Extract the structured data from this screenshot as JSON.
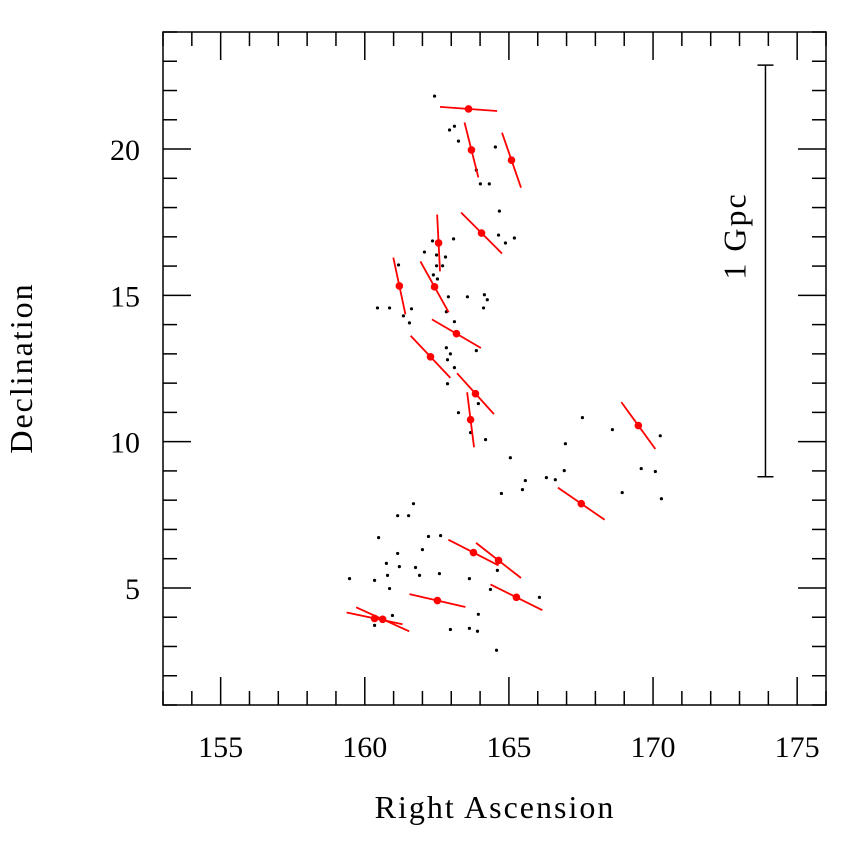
{
  "chart_data": {
    "type": "scatter",
    "title": "",
    "xlabel": "Right Ascension",
    "ylabel": "Declination",
    "xlim": [
      153,
      176
    ],
    "ylim": [
      1,
      24
    ],
    "x_ticks_major": [
      155,
      160,
      165,
      170,
      175
    ],
    "y_ticks_major": [
      5,
      10,
      15,
      20
    ],
    "x_ticks_minor_step": 1,
    "y_ticks_minor_step": 1,
    "x_tick_labels": [
      "155",
      "160",
      "165",
      "170",
      "175"
    ],
    "y_tick_labels": [
      "5",
      "10",
      "15",
      "20"
    ],
    "grid": false,
    "colors": {
      "points": "#000000",
      "highlighted": "#ff0000",
      "axes": "#000000"
    },
    "scale_bar": {
      "label": "1 Gpc",
      "ra": 173.9,
      "dec_range": [
        8.8,
        22.87
      ]
    },
    "series": [
      {
        "name": "galaxies",
        "marker": "dot",
        "points": [
          [
            162.42,
            21.81
          ],
          [
            162.94,
            20.65
          ],
          [
            163.11,
            20.78
          ],
          [
            163.25,
            20.27
          ],
          [
            164.53,
            20.07
          ],
          [
            163.87,
            19.28
          ],
          [
            164.01,
            18.81
          ],
          [
            164.32,
            18.81
          ],
          [
            164.67,
            17.88
          ],
          [
            164.64,
            17.06
          ],
          [
            165.19,
            16.96
          ],
          [
            164.88,
            16.79
          ],
          [
            163.08,
            16.93
          ],
          [
            162.35,
            16.86
          ],
          [
            162.07,
            16.48
          ],
          [
            162.49,
            16.38
          ],
          [
            162.8,
            16.31
          ],
          [
            161.17,
            16.04
          ],
          [
            162.49,
            16.01
          ],
          [
            162.7,
            16.01
          ],
          [
            162.38,
            15.7
          ],
          [
            162.52,
            15.56
          ],
          [
            162.9,
            14.95
          ],
          [
            163.56,
            14.95
          ],
          [
            164.15,
            15.02
          ],
          [
            164.25,
            14.85
          ],
          [
            164.12,
            14.57
          ],
          [
            160.44,
            14.57
          ],
          [
            160.86,
            14.57
          ],
          [
            161.62,
            14.54
          ],
          [
            161.34,
            14.3
          ],
          [
            161.55,
            14.06
          ],
          [
            162.83,
            14.44
          ],
          [
            163.11,
            14.1
          ],
          [
            163.87,
            13.11
          ],
          [
            162.83,
            13.21
          ],
          [
            162.97,
            13.0
          ],
          [
            162.87,
            12.8
          ],
          [
            163.11,
            12.53
          ],
          [
            162.87,
            11.98
          ],
          [
            163.94,
            11.3
          ],
          [
            163.25,
            10.99
          ],
          [
            163.67,
            10.31
          ],
          [
            164.19,
            10.07
          ],
          [
            165.05,
            9.45
          ],
          [
            167.55,
            10.82
          ],
          [
            168.59,
            10.41
          ],
          [
            170.25,
            10.2
          ],
          [
            166.96,
            9.93
          ],
          [
            166.92,
            9.01
          ],
          [
            166.3,
            8.77
          ],
          [
            166.61,
            8.7
          ],
          [
            165.57,
            8.67
          ],
          [
            165.47,
            8.36
          ],
          [
            164.74,
            8.23
          ],
          [
            169.59,
            9.08
          ],
          [
            170.08,
            8.98
          ],
          [
            168.93,
            8.26
          ],
          [
            170.29,
            8.05
          ],
          [
            161.69,
            7.88
          ],
          [
            161.14,
            7.47
          ],
          [
            161.52,
            7.47
          ],
          [
            160.48,
            6.72
          ],
          [
            162.21,
            6.76
          ],
          [
            162.63,
            6.79
          ],
          [
            162.0,
            6.31
          ],
          [
            161.14,
            6.18
          ],
          [
            160.75,
            5.84
          ],
          [
            161.2,
            5.73
          ],
          [
            161.76,
            5.7
          ],
          [
            160.79,
            5.43
          ],
          [
            161.9,
            5.43
          ],
          [
            162.59,
            5.49
          ],
          [
            159.47,
            5.32
          ],
          [
            160.34,
            5.26
          ],
          [
            163.63,
            5.32
          ],
          [
            160.86,
            4.98
          ],
          [
            164.6,
            5.6
          ],
          [
            164.36,
            4.95
          ],
          [
            166.06,
            4.68
          ],
          [
            160.96,
            4.06
          ],
          [
            160.34,
            3.72
          ],
          [
            163.94,
            4.1
          ],
          [
            162.97,
            3.58
          ],
          [
            163.63,
            3.62
          ],
          [
            163.91,
            3.52
          ],
          [
            164.57,
            2.87
          ]
        ]
      },
      {
        "name": "highlighted",
        "marker": "dot-with-bar",
        "comment_fields": [
          "ra",
          "dec",
          "bar_half_dra",
          "bar_half_ddec"
        ],
        "points": [
          [
            163.6,
            21.37,
            0.99,
            -0.07
          ],
          [
            163.7,
            19.97,
            0.24,
            -0.94
          ],
          [
            165.09,
            19.62,
            0.33,
            -0.94
          ],
          [
            164.05,
            17.13,
            0.71,
            -0.7
          ],
          [
            162.56,
            16.79,
            0.05,
            -0.97
          ],
          [
            161.2,
            15.32,
            0.21,
            -0.97
          ],
          [
            162.42,
            15.29,
            0.49,
            -0.87
          ],
          [
            163.18,
            13.69,
            0.85,
            -0.49
          ],
          [
            162.28,
            12.9,
            0.69,
            -0.72
          ],
          [
            163.84,
            11.64,
            0.64,
            -0.7
          ],
          [
            163.67,
            10.75,
            0.12,
            -0.94
          ],
          [
            169.49,
            10.55,
            0.59,
            -0.8
          ],
          [
            167.51,
            7.88,
            0.81,
            -0.55
          ],
          [
            163.77,
            6.21,
            0.87,
            -0.44
          ],
          [
            164.64,
            5.94,
            0.78,
            -0.6
          ],
          [
            162.52,
            4.57,
            0.97,
            -0.22
          ],
          [
            165.26,
            4.68,
            0.9,
            -0.44
          ],
          [
            160.34,
            3.96,
            0.97,
            -0.2
          ],
          [
            160.62,
            3.93,
            0.92,
            -0.41
          ]
        ]
      }
    ]
  }
}
